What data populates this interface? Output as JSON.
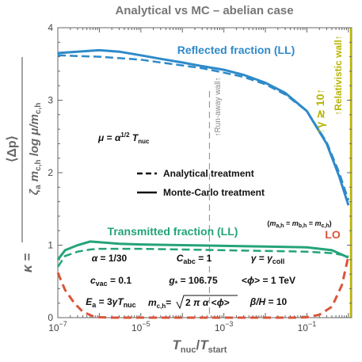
{
  "chart_data": {
    "type": "line",
    "title": "Analytical vs MC – abelian case",
    "xlabel_main": "T",
    "xlabel_num_sub": "nuc",
    "xlabel_den_sub": "start",
    "x_scale": "log",
    "xlim": [
      1e-07,
      1.2
    ],
    "ylim": [
      0,
      4
    ],
    "x_tick_labels": [
      {
        "x": 1e-07,
        "base": "10",
        "exp": "−7"
      },
      {
        "x": 1e-05,
        "base": "10",
        "exp": "−5"
      },
      {
        "x": 0.001,
        "base": "10",
        "exp": "−3"
      },
      {
        "x": 0.1,
        "base": "10",
        "exp": "−1"
      }
    ],
    "y_ticks": [
      0,
      1,
      2,
      3,
      4
    ],
    "y_tick_labels": [
      "0",
      "1",
      "2",
      "3",
      "4"
    ],
    "ylabel": {
      "kappa": "κ =",
      "numerator": "⟨Δp⟩",
      "den_zeta": "ζ",
      "den_zeta_sub": "a",
      "den_m": "m",
      "den_m_sub": "c,h",
      "den_log": "log μ/m",
      "den_log_sub": "c,h"
    },
    "colors": {
      "reflected": "#2e8ac9",
      "transmitted": "#24a37a",
      "lo": "#d9553b",
      "wall": "#b8b400",
      "runaway": "#999999"
    },
    "series": [
      {
        "name": "Reflected fraction (LL)",
        "treatment": "Monte-Carlo",
        "x": [
          1e-07,
          3e-07,
          1e-06,
          3e-06,
          1e-05,
          3e-05,
          0.0001,
          0.0003,
          0.001,
          0.003,
          0.01,
          0.03,
          0.1,
          0.3,
          0.6,
          1.0
        ],
        "y": [
          3.65,
          3.67,
          3.69,
          3.67,
          3.62,
          3.57,
          3.52,
          3.47,
          3.42,
          3.35,
          3.24,
          3.1,
          2.85,
          2.4,
          1.95,
          1.55
        ]
      },
      {
        "name": "Reflected fraction (LL)",
        "treatment": "Analytical",
        "x": [
          1e-07,
          3e-07,
          1e-06,
          3e-06,
          1e-05,
          3e-05,
          0.0001,
          0.0003,
          0.001,
          0.003,
          0.01,
          0.03,
          0.1,
          0.3,
          0.6,
          1.0
        ],
        "y": [
          3.62,
          3.61,
          3.6,
          3.58,
          3.56,
          3.52,
          3.48,
          3.44,
          3.38,
          3.32,
          3.22,
          3.08,
          2.85,
          2.42,
          2.0,
          1.62
        ]
      },
      {
        "name": "Transmitted fraction (LL)",
        "treatment": "Monte-Carlo",
        "x": [
          1e-07,
          1.5e-07,
          3e-07,
          6e-07,
          1e-06,
          3e-06,
          1e-05,
          0.0001,
          0.001,
          0.01,
          0.1,
          0.4,
          1.0
        ],
        "y": [
          0.8,
          0.93,
          1.0,
          1.05,
          1.04,
          1.02,
          1.01,
          1.0,
          0.99,
          0.98,
          0.97,
          0.93,
          0.83
        ]
      },
      {
        "name": "Transmitted fraction (LL)",
        "treatment": "Analytical",
        "x": [
          1e-07,
          1.5e-07,
          3e-07,
          6e-07,
          1e-06,
          3e-06,
          1e-05,
          0.0001,
          0.001,
          0.01,
          0.1,
          0.4,
          1.0
        ],
        "y": [
          0.7,
          0.85,
          0.91,
          0.94,
          0.95,
          0.95,
          0.95,
          0.94,
          0.93,
          0.92,
          0.91,
          0.89,
          0.85
        ]
      },
      {
        "name": "LO",
        "treatment": "Analytical",
        "x": [
          1e-07,
          1.5e-07,
          2.5e-07,
          4e-07,
          7e-07,
          1e-06,
          2e-06,
          5e-06,
          1e-05,
          0.0001,
          0.001,
          0.01,
          0.05,
          0.1,
          0.2,
          0.4,
          0.7,
          1.0
        ],
        "y": [
          0.62,
          0.38,
          0.2,
          0.08,
          0.02,
          0.005,
          0,
          0,
          0,
          0,
          0,
          0,
          0,
          0.005,
          0.04,
          0.15,
          0.45,
          0.85
        ]
      }
    ],
    "runaway_x": 0.00045,
    "wall_x": 1.15,
    "legend": {
      "placement": "center",
      "analytical": "Analytical treatment",
      "mc": "Monte-Carlo treatment"
    },
    "annotations": {
      "reflected": "Reflected fraction (LL)",
      "transmitted": "Transmitted fraction (LL)",
      "lo": "LO",
      "runaway": "↑Run-away wall↑",
      "relativistic": "↑Relativistic wall↑",
      "gamma": "↑γ ≳ 10↑",
      "mu_formula": "μ = α^1/2 T_nuc",
      "mass_relation": "(m_a,h = m_b,h = m_c,h)",
      "params": [
        "α = 1/30",
        "C_abc = 1",
        "γ = γ_coll",
        "c_vac = 0.1",
        "g_* = 106.75",
        "<ϕ> = 1 TeV",
        "E_a = 3γT_nuc",
        "m_c,h = √(2πα <ϕ>)",
        "β/H = 10"
      ]
    }
  }
}
